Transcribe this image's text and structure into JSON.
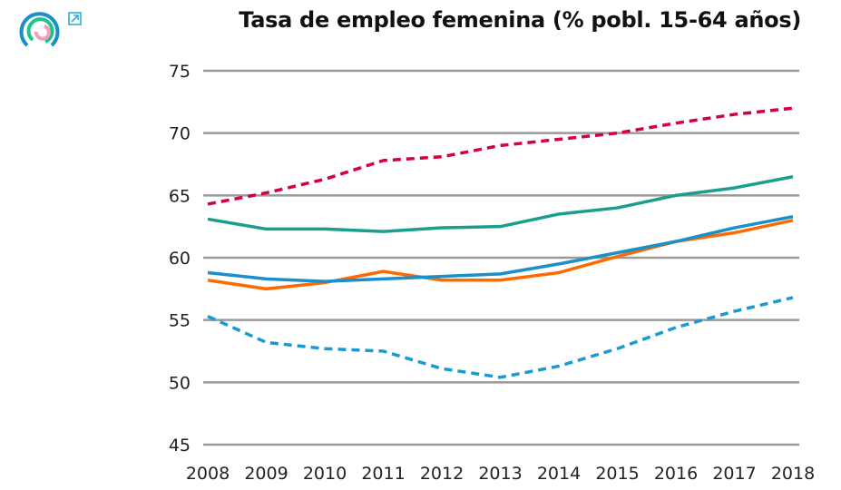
{
  "chart_data": {
    "type": "line",
    "title": "Tasa de empleo femenina (% pobl. 15-64 años)",
    "xlabel": "",
    "ylabel": "",
    "x": [
      2008,
      2009,
      2010,
      2011,
      2012,
      2013,
      2014,
      2015,
      2016,
      2017,
      2018
    ],
    "ylim": [
      45,
      75
    ],
    "yticks": [
      45,
      50,
      55,
      60,
      65,
      70,
      75
    ],
    "grid": "horizontal",
    "series": [
      {
        "color": "#d6003a",
        "style": "dashed",
        "values": [
          64.3,
          65.2,
          66.3,
          67.8,
          68.1,
          69.0,
          69.5,
          70.0,
          70.8,
          71.5,
          72.0
        ]
      },
      {
        "color": "#1a9e8e",
        "style": "solid",
        "values": [
          63.1,
          62.3,
          62.3,
          62.1,
          62.4,
          62.5,
          63.5,
          64.0,
          65.0,
          65.6,
          66.5
        ]
      },
      {
        "color": "#ff6a00",
        "style": "solid",
        "values": [
          58.2,
          57.5,
          58.0,
          58.9,
          58.2,
          58.2,
          58.8,
          60.1,
          61.3,
          62.0,
          63.0
        ]
      },
      {
        "color": "#1a8fc8",
        "style": "solid",
        "values": [
          58.8,
          58.3,
          58.1,
          58.3,
          58.5,
          58.7,
          59.5,
          60.4,
          61.3,
          62.4,
          63.3
        ]
      },
      {
        "color": "#1a9bd0",
        "style": "dashed",
        "values": [
          55.3,
          53.2,
          52.7,
          52.5,
          51.1,
          50.4,
          51.3,
          52.7,
          54.4,
          55.7,
          56.8
        ]
      }
    ]
  },
  "icons": {
    "logo": "concentric-arcs-logo",
    "external": "external-link-icon"
  }
}
